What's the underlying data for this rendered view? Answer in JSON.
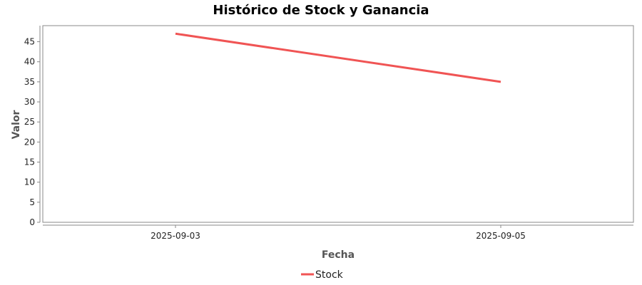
{
  "chart_data": {
    "type": "line",
    "title": "Histórico de Stock y Ganancia",
    "xlabel": "Fecha",
    "ylabel": "Valor",
    "x": [
      "2025-09-03",
      "2025-09-05"
    ],
    "series": [
      {
        "name": "Stock",
        "color": "#f05454",
        "values": [
          47,
          35
        ]
      }
    ],
    "ylim": [
      0,
      49
    ],
    "yticks": [
      0,
      5,
      10,
      15,
      20,
      25,
      30,
      35,
      40,
      45
    ],
    "grid": false,
    "legend_position": "bottom-center"
  }
}
